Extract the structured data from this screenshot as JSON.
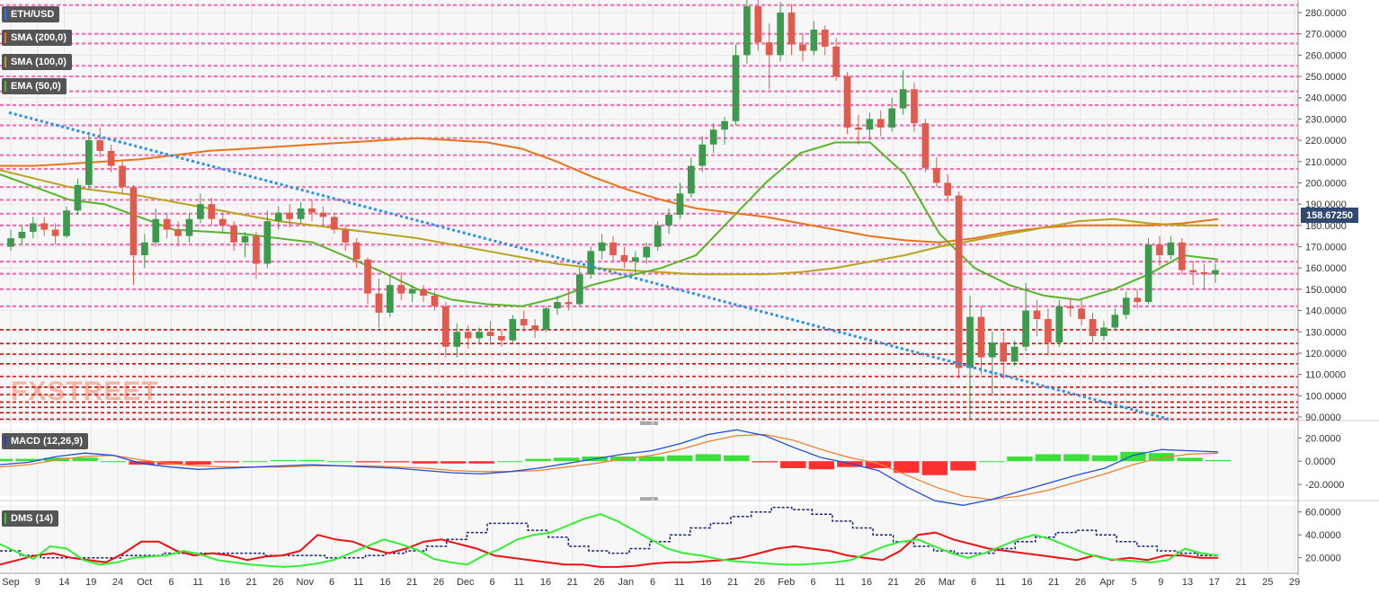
{
  "symbol": "ETH/USD",
  "indicators": {
    "sma200": "SMA (200,0)",
    "sma100": "SMA (100,0)",
    "ema50": "EMA (50,0)",
    "macd": "MACD (12,26,9)",
    "dms": "DMS (14)"
  },
  "watermark": "FXSTREET",
  "current_price": "158.67250",
  "colors": {
    "bull": "#3c9a4c",
    "bear": "#e05a4e",
    "sma200": "#e8741c",
    "sma100": "#b8a31c",
    "ema50": "#58b52a",
    "trendline": "#2a8ff0",
    "resistance": "#ff69b4",
    "support": "#e00000",
    "macd_line": "#1f4fd8",
    "signal_line": "#f08030",
    "hist_pos": "#22dd22",
    "hist_neg": "#ff1a1a",
    "di_plus": "#33ee33",
    "di_minus": "#ee1111",
    "adx": "#1a237e"
  },
  "chart_data": [
    {
      "type": "candlestick",
      "title": "ETH/USD",
      "ylim": [
        88,
        287
      ],
      "y_ticks": [
        "280.0000",
        "270.0000",
        "260.0000",
        "250.0000",
        "240.0000",
        "230.0000",
        "220.0000",
        "210.0000",
        "200.0000",
        "190.0000",
        "180.0000",
        "170.0000",
        "160.0000",
        "150.0000",
        "140.0000",
        "130.0000",
        "120.0000",
        "110.0000",
        "100.0000",
        "90.0000"
      ],
      "y_tick_values": [
        280,
        270,
        260,
        250,
        240,
        230,
        220,
        210,
        200,
        190,
        180,
        170,
        160,
        150,
        140,
        130,
        120,
        110,
        100,
        90
      ],
      "x_ticks": [
        "Sep",
        "9",
        "14",
        "19",
        "24",
        "Oct",
        "6",
        "11",
        "16",
        "21",
        "26",
        "Nov",
        "6",
        "11",
        "16",
        "21",
        "26",
        "Dec",
        "6",
        "11",
        "16",
        "21",
        "26",
        "Jan",
        "6",
        "11",
        "16",
        "21",
        "26",
        "Feb",
        "6",
        "11",
        "16",
        "21",
        "26",
        "Mar",
        "6",
        "11",
        "16",
        "21",
        "26",
        "Apr",
        "5",
        "9",
        "13",
        "17",
        "21",
        "25",
        "29"
      ],
      "resistance_levels": [
        287,
        283.5,
        270,
        265.5,
        255,
        250,
        243,
        236.5,
        227,
        221,
        213,
        206.5,
        198,
        192,
        185.5,
        180,
        171,
        163,
        157.3,
        150,
        142
      ],
      "support_levels": [
        131,
        124.5,
        119.5,
        115,
        109,
        104,
        100.5,
        97,
        94.5,
        92,
        89
      ],
      "candles": [
        {
          "o": 170,
          "h": 178,
          "l": 168,
          "c": 174
        },
        {
          "o": 174,
          "h": 180,
          "l": 171,
          "c": 177
        },
        {
          "o": 177,
          "h": 184,
          "l": 174,
          "c": 181
        },
        {
          "o": 181,
          "h": 184,
          "l": 175,
          "c": 178
        },
        {
          "o": 178,
          "h": 181,
          "l": 171,
          "c": 175
        },
        {
          "o": 175,
          "h": 189,
          "l": 174,
          "c": 187
        },
        {
          "o": 187,
          "h": 202,
          "l": 185,
          "c": 199
        },
        {
          "o": 199,
          "h": 224,
          "l": 197,
          "c": 220
        },
        {
          "o": 220,
          "h": 226,
          "l": 212,
          "c": 215
        },
        {
          "o": 215,
          "h": 218,
          "l": 205,
          "c": 208
        },
        {
          "o": 208,
          "h": 210,
          "l": 195,
          "c": 198
        },
        {
          "o": 198,
          "h": 199,
          "l": 152,
          "c": 166
        },
        {
          "o": 166,
          "h": 176,
          "l": 160,
          "c": 172
        },
        {
          "o": 172,
          "h": 188,
          "l": 170,
          "c": 183
        },
        {
          "o": 183,
          "h": 186,
          "l": 174,
          "c": 178
        },
        {
          "o": 178,
          "h": 182,
          "l": 170,
          "c": 175
        },
        {
          "o": 175,
          "h": 186,
          "l": 172,
          "c": 183
        },
        {
          "o": 183,
          "h": 195,
          "l": 181,
          "c": 190
        },
        {
          "o": 190,
          "h": 193,
          "l": 180,
          "c": 183
        },
        {
          "o": 183,
          "h": 186,
          "l": 176,
          "c": 180
        },
        {
          "o": 180,
          "h": 182,
          "l": 168,
          "c": 172
        },
        {
          "o": 172,
          "h": 177,
          "l": 165,
          "c": 175
        },
        {
          "o": 175,
          "h": 177,
          "l": 155,
          "c": 162
        },
        {
          "o": 162,
          "h": 187,
          "l": 160,
          "c": 182
        },
        {
          "o": 182,
          "h": 189,
          "l": 178,
          "c": 186
        },
        {
          "o": 186,
          "h": 190,
          "l": 179,
          "c": 183
        },
        {
          "o": 183,
          "h": 191,
          "l": 181,
          "c": 188
        },
        {
          "o": 188,
          "h": 192,
          "l": 182,
          "c": 186
        },
        {
          "o": 186,
          "h": 189,
          "l": 180,
          "c": 184
        },
        {
          "o": 184,
          "h": 186,
          "l": 176,
          "c": 178
        },
        {
          "o": 178,
          "h": 180,
          "l": 168,
          "c": 172
        },
        {
          "o": 172,
          "h": 174,
          "l": 160,
          "c": 164
        },
        {
          "o": 164,
          "h": 165,
          "l": 143,
          "c": 148
        },
        {
          "o": 148,
          "h": 155,
          "l": 132,
          "c": 139
        },
        {
          "o": 139,
          "h": 157,
          "l": 137,
          "c": 152
        },
        {
          "o": 152,
          "h": 158,
          "l": 145,
          "c": 148
        },
        {
          "o": 148,
          "h": 152,
          "l": 144,
          "c": 150
        },
        {
          "o": 150,
          "h": 152,
          "l": 144,
          "c": 147
        },
        {
          "o": 147,
          "h": 149,
          "l": 140,
          "c": 142
        },
        {
          "o": 142,
          "h": 144,
          "l": 118,
          "c": 123
        },
        {
          "o": 123,
          "h": 134,
          "l": 118,
          "c": 130
        },
        {
          "o": 130,
          "h": 133,
          "l": 122,
          "c": 127
        },
        {
          "o": 127,
          "h": 132,
          "l": 124,
          "c": 130
        },
        {
          "o": 130,
          "h": 135,
          "l": 124,
          "c": 128
        },
        {
          "o": 128,
          "h": 131,
          "l": 123,
          "c": 126
        },
        {
          "o": 126,
          "h": 138,
          "l": 125,
          "c": 136
        },
        {
          "o": 136,
          "h": 140,
          "l": 130,
          "c": 133
        },
        {
          "o": 133,
          "h": 136,
          "l": 127,
          "c": 131
        },
        {
          "o": 131,
          "h": 142,
          "l": 130,
          "c": 141
        },
        {
          "o": 141,
          "h": 147,
          "l": 138,
          "c": 144
        },
        {
          "o": 144,
          "h": 150,
          "l": 140,
          "c": 143
        },
        {
          "o": 143,
          "h": 160,
          "l": 142,
          "c": 157
        },
        {
          "o": 157,
          "h": 170,
          "l": 155,
          "c": 168
        },
        {
          "o": 168,
          "h": 176,
          "l": 164,
          "c": 172
        },
        {
          "o": 172,
          "h": 175,
          "l": 163,
          "c": 166
        },
        {
          "o": 166,
          "h": 170,
          "l": 160,
          "c": 163
        },
        {
          "o": 163,
          "h": 168,
          "l": 157,
          "c": 165
        },
        {
          "o": 165,
          "h": 172,
          "l": 162,
          "c": 170
        },
        {
          "o": 170,
          "h": 182,
          "l": 168,
          "c": 180
        },
        {
          "o": 180,
          "h": 188,
          "l": 176,
          "c": 185
        },
        {
          "o": 185,
          "h": 200,
          "l": 183,
          "c": 195
        },
        {
          "o": 195,
          "h": 212,
          "l": 193,
          "c": 208
        },
        {
          "o": 208,
          "h": 222,
          "l": 205,
          "c": 218
        },
        {
          "o": 218,
          "h": 228,
          "l": 214,
          "c": 225
        },
        {
          "o": 225,
          "h": 231,
          "l": 218,
          "c": 229
        },
        {
          "o": 229,
          "h": 265,
          "l": 227,
          "c": 260
        },
        {
          "o": 260,
          "h": 286,
          "l": 256,
          "c": 283
        },
        {
          "o": 283,
          "h": 287,
          "l": 262,
          "c": 266
        },
        {
          "o": 266,
          "h": 275,
          "l": 244,
          "c": 260
        },
        {
          "o": 260,
          "h": 285,
          "l": 257,
          "c": 280
        },
        {
          "o": 280,
          "h": 284,
          "l": 260,
          "c": 265
        },
        {
          "o": 265,
          "h": 270,
          "l": 257,
          "c": 262
        },
        {
          "o": 262,
          "h": 276,
          "l": 260,
          "c": 272
        },
        {
          "o": 272,
          "h": 274,
          "l": 260,
          "c": 264
        },
        {
          "o": 264,
          "h": 268,
          "l": 248,
          "c": 250
        },
        {
          "o": 250,
          "h": 252,
          "l": 223,
          "c": 226
        },
        {
          "o": 226,
          "h": 232,
          "l": 218,
          "c": 225
        },
        {
          "o": 225,
          "h": 233,
          "l": 220,
          "c": 230
        },
        {
          "o": 230,
          "h": 234,
          "l": 222,
          "c": 226
        },
        {
          "o": 226,
          "h": 240,
          "l": 224,
          "c": 235
        },
        {
          "o": 235,
          "h": 253,
          "l": 232,
          "c": 244
        },
        {
          "o": 244,
          "h": 247,
          "l": 224,
          "c": 228
        },
        {
          "o": 228,
          "h": 230,
          "l": 205,
          "c": 207
        },
        {
          "o": 207,
          "h": 212,
          "l": 198,
          "c": 200
        },
        {
          "o": 200,
          "h": 204,
          "l": 191,
          "c": 194
        },
        {
          "o": 194,
          "h": 196,
          "l": 108,
          "c": 113
        },
        {
          "o": 113,
          "h": 147,
          "l": 89,
          "c": 137
        },
        {
          "o": 137,
          "h": 142,
          "l": 110,
          "c": 118
        },
        {
          "o": 118,
          "h": 130,
          "l": 100,
          "c": 125
        },
        {
          "o": 125,
          "h": 130,
          "l": 108,
          "c": 116
        },
        {
          "o": 116,
          "h": 126,
          "l": 114,
          "c": 123
        },
        {
          "o": 123,
          "h": 153,
          "l": 121,
          "c": 140
        },
        {
          "o": 140,
          "h": 145,
          "l": 128,
          "c": 136
        },
        {
          "o": 136,
          "h": 141,
          "l": 119,
          "c": 125
        },
        {
          "o": 125,
          "h": 145,
          "l": 123,
          "c": 142
        },
        {
          "o": 142,
          "h": 146,
          "l": 137,
          "c": 141
        },
        {
          "o": 141,
          "h": 145,
          "l": 133,
          "c": 136
        },
        {
          "o": 136,
          "h": 139,
          "l": 125,
          "c": 128
        },
        {
          "o": 128,
          "h": 135,
          "l": 126,
          "c": 132
        },
        {
          "o": 132,
          "h": 141,
          "l": 131,
          "c": 138
        },
        {
          "o": 138,
          "h": 149,
          "l": 136,
          "c": 146
        },
        {
          "o": 146,
          "h": 150,
          "l": 141,
          "c": 144
        },
        {
          "o": 144,
          "h": 174,
          "l": 143,
          "c": 171
        },
        {
          "o": 171,
          "h": 175,
          "l": 161,
          "c": 166
        },
        {
          "o": 166,
          "h": 175,
          "l": 164,
          "c": 172
        },
        {
          "o": 172,
          "h": 174,
          "l": 157,
          "c": 159
        },
        {
          "o": 159,
          "h": 163,
          "l": 152,
          "c": 158
        },
        {
          "o": 158,
          "h": 162,
          "l": 150,
          "c": 157
        },
        {
          "o": 157,
          "h": 162,
          "l": 153,
          "c": 159
        }
      ],
      "sma200": [
        208,
        208,
        209,
        210,
        211,
        213,
        215,
        216,
        217,
        218,
        219,
        220,
        221,
        220,
        219,
        216,
        210,
        203,
        197,
        192,
        188,
        186,
        184,
        181,
        178,
        175,
        173,
        172,
        174,
        177,
        179,
        180,
        180,
        180,
        181,
        183
      ],
      "sma100": [
        206,
        202,
        198,
        196,
        194,
        191,
        188,
        185,
        182,
        180,
        178,
        176,
        174,
        171,
        168,
        165,
        162,
        160,
        159,
        158,
        157,
        157,
        157,
        158,
        160,
        163,
        166,
        170,
        173,
        176,
        179,
        182,
        183,
        181,
        180,
        180
      ],
      "ema50": [
        204,
        198,
        192,
        190,
        184,
        178,
        177,
        176,
        174,
        172,
        165,
        158,
        150,
        145,
        143,
        142,
        146,
        152,
        156,
        160,
        166,
        183,
        200,
        214,
        219,
        219,
        204,
        176,
        160,
        152,
        147,
        145,
        150,
        157,
        166,
        164
      ],
      "trendline": {
        "x": [
          "Sep 14",
          "Apr 7"
        ],
        "y": [
          233,
          89
        ]
      }
    },
    {
      "type": "line",
      "title": "MACD (12,26,9)",
      "ylim": [
        -30,
        28
      ],
      "y_ticks": [
        "20.0000",
        "0.0000",
        "-20.0000"
      ],
      "y_tick_values": [
        20,
        0,
        -20
      ],
      "macd": [
        -3,
        -1,
        4,
        7,
        5,
        -2,
        -5,
        -7,
        -6,
        -5,
        -4,
        -3,
        -4,
        -5,
        -6,
        -8,
        -10,
        -11,
        -9,
        -6,
        -2,
        2,
        6,
        9,
        15,
        23,
        27,
        22,
        12,
        3,
        -2,
        -8,
        -22,
        -34,
        -38,
        -33,
        -26,
        -19,
        -12,
        -6,
        5,
        10,
        9,
        8
      ],
      "signal": [
        -5,
        -3,
        1,
        4,
        5,
        1,
        -2,
        -4,
        -5,
        -5,
        -5,
        -4,
        -4,
        -4,
        -5,
        -6,
        -8,
        -9,
        -9,
        -8,
        -5,
        -2,
        2,
        5,
        10,
        17,
        22,
        23,
        18,
        10,
        3,
        -2,
        -12,
        -22,
        -30,
        -33,
        -30,
        -25,
        -18,
        -11,
        -3,
        3,
        6,
        7
      ],
      "histogram": [
        2,
        2,
        3,
        3,
        0,
        -3,
        -3,
        -3,
        -1,
        0,
        1,
        1,
        0,
        -1,
        -1,
        -2,
        -2,
        -2,
        0,
        2,
        3,
        4,
        4,
        4,
        5,
        6,
        5,
        -1,
        -6,
        -7,
        -5,
        -6,
        -10,
        -12,
        -8,
        0,
        4,
        6,
        6,
        5,
        8,
        7,
        3,
        1
      ]
    },
    {
      "type": "line",
      "title": "DMS (14)",
      "ylim": [
        8,
        66
      ],
      "y_ticks": [
        "60.0000",
        "40.0000",
        "20.0000"
      ],
      "y_tick_values": [
        60,
        40,
        20
      ],
      "di_plus": [
        32,
        25,
        19,
        30,
        28,
        18,
        14,
        16,
        20,
        21,
        22,
        26,
        23,
        18,
        16,
        14,
        13,
        12,
        13,
        15,
        18,
        24,
        30,
        36,
        32,
        27,
        19,
        16,
        14,
        22,
        28,
        36,
        40,
        42,
        48,
        54,
        58,
        52,
        44,
        36,
        28,
        24,
        22,
        19,
        17,
        16,
        15,
        14,
        14,
        15,
        16,
        18,
        24,
        30,
        34,
        36,
        30,
        24,
        20,
        24,
        30,
        36,
        40,
        36,
        30,
        24,
        20,
        18,
        17,
        16,
        18,
        28,
        24,
        22
      ],
      "di_minus": [
        14,
        18,
        22,
        24,
        20,
        18,
        16,
        24,
        34,
        34,
        26,
        22,
        24,
        22,
        18,
        21,
        22,
        26,
        40,
        36,
        34,
        28,
        24,
        28,
        34,
        36,
        32,
        28,
        22,
        20,
        18,
        16,
        14,
        14,
        12,
        12,
        13,
        15,
        16,
        16,
        17,
        18,
        20,
        24,
        28,
        30,
        28,
        26,
        22,
        20,
        18,
        26,
        40,
        42,
        36,
        32,
        28,
        26,
        24,
        22,
        20,
        18,
        22,
        18,
        20,
        18,
        22,
        22,
        20,
        20
      ],
      "adx": [
        26,
        22,
        20,
        20,
        20,
        20,
        22,
        22,
        24,
        24,
        24,
        24,
        24,
        22,
        22,
        22,
        20,
        20,
        22,
        24,
        26,
        30,
        36,
        42,
        50,
        50,
        44,
        38,
        30,
        26,
        24,
        28,
        34,
        40,
        46,
        50,
        56,
        60,
        64,
        62,
        58,
        52,
        46,
        40,
        34,
        30,
        26,
        24,
        24,
        28,
        34,
        38,
        42,
        44,
        40,
        34,
        30,
        26,
        24,
        22,
        22
      ]
    }
  ]
}
